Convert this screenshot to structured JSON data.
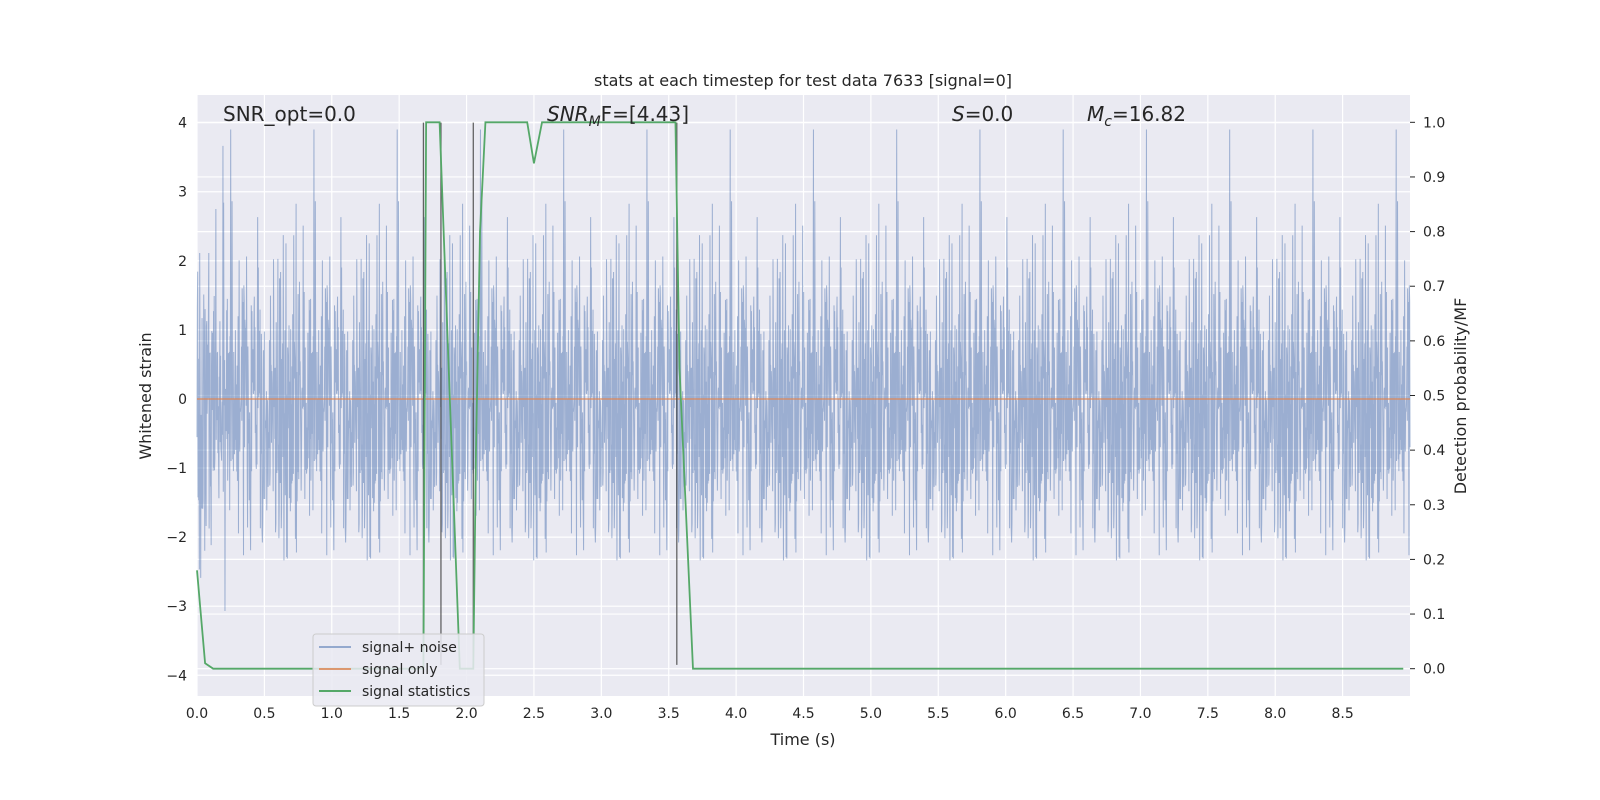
{
  "chart_data": {
    "type": "line",
    "title": "stats at each timestep for test data 7633 [signal=0]",
    "xlabel": "Time (s)",
    "ylabel": "Whitened strain",
    "y2label": "Detection probability/MF",
    "xlim": [
      0.0,
      9.0
    ],
    "ylim": [
      -4.3,
      4.4
    ],
    "y2lim": [
      -0.05,
      1.05
    ],
    "xticks": [
      "0.0",
      "0.5",
      "1.0",
      "1.5",
      "2.0",
      "2.5",
      "3.0",
      "3.5",
      "4.0",
      "4.5",
      "5.0",
      "5.5",
      "6.0",
      "6.5",
      "7.0",
      "7.5",
      "8.0",
      "8.5"
    ],
    "yticks": [
      "4",
      "3",
      "2",
      "1",
      "0",
      "−1",
      "−2",
      "−3",
      "−4"
    ],
    "y2ticks": [
      "1.0",
      "0.9",
      "0.8",
      "0.7",
      "0.6",
      "0.5",
      "0.4",
      "0.3",
      "0.2",
      "0.1",
      "0.0"
    ],
    "grid": true,
    "legend_position": "lower-left",
    "annotations": {
      "snr_opt": "SNR_opt=0.0",
      "snr_mf_prefix": "SNR",
      "snr_mf_sub": "M",
      "snr_mf_suffix": "F=[4.43]",
      "s_sym": "S",
      "s_val": "=0.0",
      "mc_sym": "M",
      "mc_sub": "c",
      "mc_val": "=16.82"
    },
    "vertical_lines_x": [
      1.68,
      1.81,
      2.05,
      3.56
    ],
    "series": [
      {
        "name": "signal+ noise",
        "color": "#4c72b0",
        "kind": "noise",
        "amplitude_range": [
          -3.9,
          3.9
        ]
      },
      {
        "name": "signal only",
        "color": "#dd8452",
        "kind": "flat",
        "value": 0.0
      },
      {
        "name": "signal statistics",
        "color": "#55a868",
        "axis": "right",
        "x": [
          0.0,
          0.06,
          0.12,
          1.68,
          1.7,
          1.78,
          1.8,
          1.95,
          2.05,
          2.07,
          2.1,
          2.14,
          2.45,
          2.5,
          2.56,
          2.6,
          3.55,
          3.58,
          3.68,
          3.72,
          8.95
        ],
        "y": [
          0.18,
          0.01,
          0.0,
          0.0,
          1.0,
          1.0,
          1.0,
          0.0,
          0.0,
          0.4,
          0.8,
          1.0,
          1.0,
          0.925,
          1.0,
          1.0,
          1.0,
          0.55,
          0.0,
          0.0,
          0.0
        ]
      }
    ]
  }
}
